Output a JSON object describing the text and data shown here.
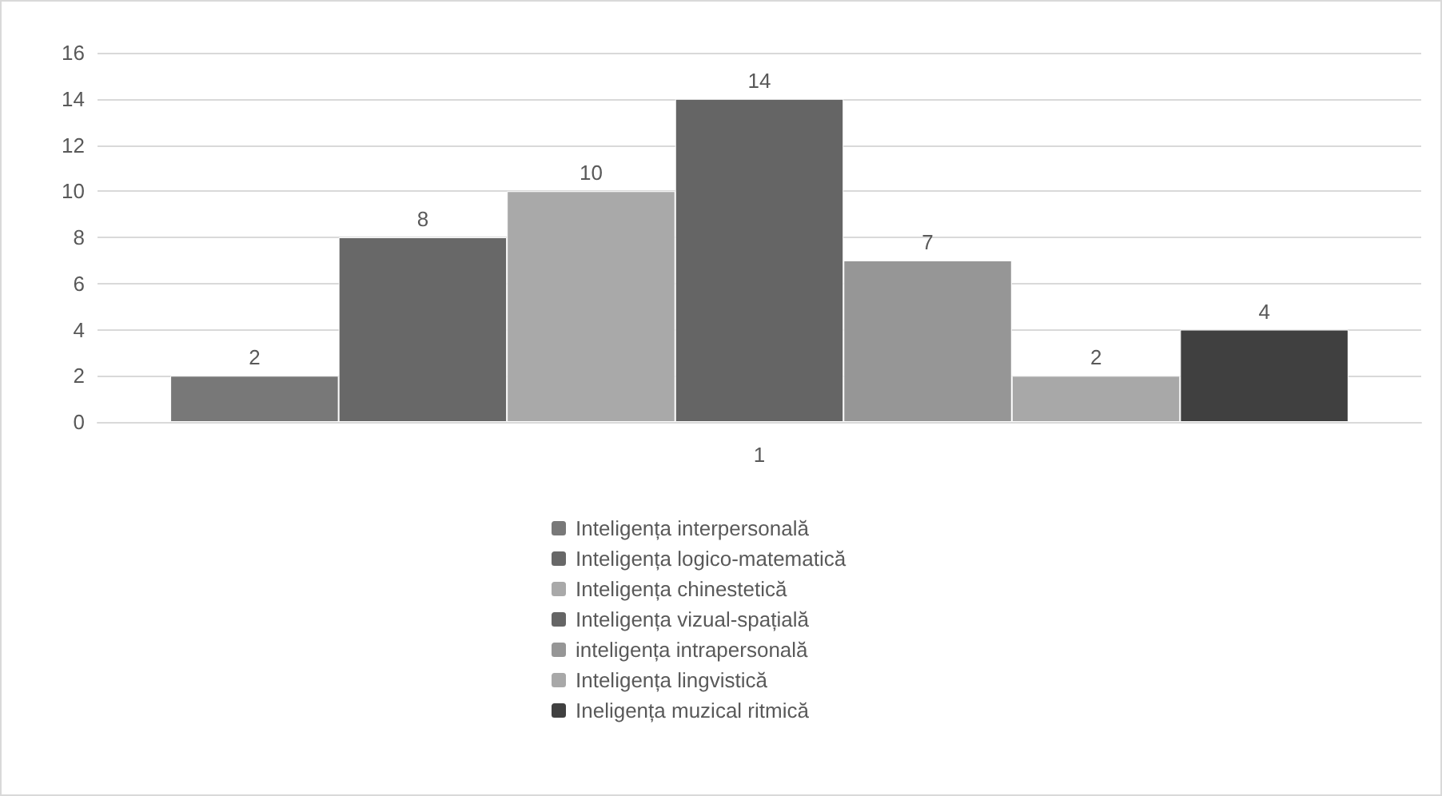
{
  "chart_data": {
    "type": "bar",
    "categories": [
      "1"
    ],
    "series": [
      {
        "name": "Inteligența interpersonală",
        "color": "#787878",
        "values": [
          2
        ]
      },
      {
        "name": "Inteligența logico-matematică",
        "color": "#686868",
        "values": [
          8
        ]
      },
      {
        "name": "Inteligența chinestetică",
        "color": "#a9a9a9",
        "values": [
          10
        ]
      },
      {
        "name": "Inteligența vizual-spațială",
        "color": "#656565",
        "values": [
          14
        ]
      },
      {
        "name": "inteligența intrapersonală",
        "color": "#969696",
        "values": [
          7
        ]
      },
      {
        "name": "Inteligența lingvistică",
        "color": "#a8a8a8",
        "values": [
          2
        ]
      },
      {
        "name": "Ineligența muzical ritmică",
        "color": "#404040",
        "values": [
          4
        ]
      }
    ],
    "ylim": [
      0,
      16
    ],
    "yticks": [
      0,
      2,
      4,
      6,
      8,
      10,
      12,
      14,
      16
    ],
    "grid": "y",
    "legend": "bottom",
    "data_labels": true
  }
}
